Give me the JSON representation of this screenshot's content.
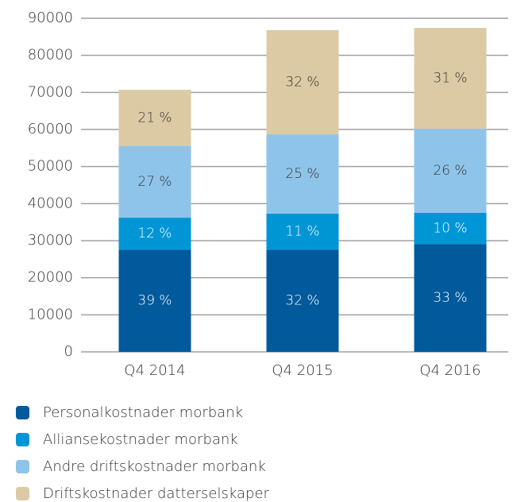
{
  "chart_data": {
    "type": "stacked_bar",
    "categories": [
      "Q4 2014",
      "Q4 2015",
      "Q4 2016"
    ],
    "series": [
      {
        "name": "Personalkostnader morbank",
        "color": "#005a9c",
        "values": [
          27600,
          27600,
          29100
        ],
        "value_labels": [
          "39 %",
          "32 %",
          "33 %"
        ]
      },
      {
        "name": "Alliansekostnader morbank",
        "color": "#0096d6",
        "values": [
          8600,
          9700,
          8400
        ],
        "value_labels": [
          "12 %",
          "11 %",
          "10 %"
        ]
      },
      {
        "name": "Andre driftskostnader morbank",
        "color": "#8fc4ea",
        "values": [
          19300,
          21400,
          22700
        ],
        "value_labels": [
          "27 %",
          "25 %",
          "26 %"
        ]
      },
      {
        "name": "Driftskostnader datterselskaper",
        "color": "#dccaa4",
        "values": [
          15200,
          28100,
          27200
        ],
        "value_labels": [
          "21 %",
          "32 %",
          "31 %"
        ]
      }
    ],
    "ylim": [
      0,
      90000
    ],
    "yticks": [
      0,
      10000,
      20000,
      30000,
      40000,
      50000,
      60000,
      70000,
      80000,
      90000
    ],
    "grid": true
  }
}
